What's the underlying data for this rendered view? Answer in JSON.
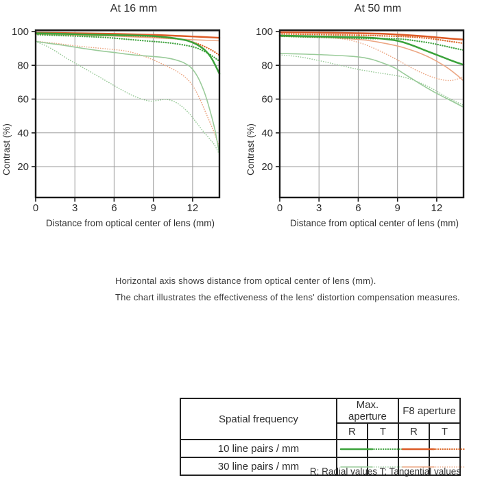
{
  "annotation": {
    "line1": "Horizontal axis shows distance from optical center of lens (mm).",
    "line2": "The chart illustrates the effectiveness of the lens' distortion compensation measures."
  },
  "legend": {
    "header_col": "Spatial frequency",
    "group1": "Max. aperture",
    "group2": "F8 aperture",
    "sub_r": "R",
    "sub_t": "T",
    "rows": [
      {
        "label": "10 line pairs / mm",
        "samples": [
          "max-r-10",
          "max-t-10",
          "f8-r-10",
          "f8-t-10"
        ]
      },
      {
        "label": "30 line pairs / mm",
        "samples": [
          "max-r-30",
          "max-t-30",
          "f8-r-30",
          "f8-t-30"
        ]
      }
    ],
    "footnote": "R: Radial values  T: Tangential values"
  },
  "styles": {
    "max-r-10": {
      "color": "#3aa23a",
      "width": 2.5,
      "dotted": false
    },
    "max-t-10": {
      "color": "#44a544",
      "width": 2.3,
      "dotted": true
    },
    "f8-r-10": {
      "color": "#dc5a26",
      "width": 2.5,
      "dotted": false
    },
    "f8-t-10": {
      "color": "#dd6a2c",
      "width": 2.3,
      "dotted": true
    },
    "max-r-30": {
      "color": "#9acb9a",
      "width": 1.6,
      "dotted": false
    },
    "max-t-30": {
      "color": "#9acb9a",
      "width": 1.6,
      "dotted": true
    },
    "f8-r-30": {
      "color": "#eca784",
      "width": 1.6,
      "dotted": false
    },
    "f8-t-30": {
      "color": "#eca784",
      "width": 1.6,
      "dotted": true
    }
  },
  "chart_data": {
    "type": "line",
    "xlabel": "Distance from optical center of lens (mm)",
    "ylabel": "Contrast (%)",
    "x_ticks": [
      0,
      3,
      6,
      9,
      12
    ],
    "y_ticks": [
      20,
      40,
      60,
      80,
      100
    ],
    "xlim": [
      0,
      14.05
    ],
    "ylim": [
      0,
      100
    ],
    "grid": true,
    "legend_position": "bottom-table",
    "charts": [
      {
        "title": "At 16 mm",
        "series": [
          {
            "name": "30 lp/mm F8 Tangential",
            "style": "f8-t-30",
            "points": [
              [
                0,
                94.3
              ],
              [
                1.5,
                93
              ],
              [
                3,
                91.6
              ],
              [
                4.5,
                90.4
              ],
              [
                6,
                89.3
              ],
              [
                7,
                88.3
              ],
              [
                8,
                86.2
              ],
              [
                9,
                83.2
              ],
              [
                10,
                79.6
              ],
              [
                10.8,
                76.4
              ],
              [
                11.5,
                72.5
              ],
              [
                12,
                68
              ],
              [
                12.5,
                61
              ],
              [
                13,
                52
              ],
              [
                13.5,
                43
              ],
              [
                13.8,
                37
              ],
              [
                14.05,
                31
              ]
            ]
          },
          {
            "name": "30 lp/mm F8 Radial",
            "style": "f8-r-30",
            "points": [
              [
                0,
                98.4
              ],
              [
                3,
                97.9
              ],
              [
                6,
                97.3
              ],
              [
                9,
                96.3
              ],
              [
                11,
                95.5
              ],
              [
                12.5,
                95
              ],
              [
                14.05,
                94.5
              ]
            ]
          },
          {
            "name": "30 lp/mm Max Tangential",
            "style": "max-t-30",
            "points": [
              [
                0,
                94
              ],
              [
                0.8,
                91.5
              ],
              [
                1.6,
                88
              ],
              [
                2.4,
                84
              ],
              [
                3.2,
                80.5
              ],
              [
                4,
                77
              ],
              [
                5,
                72.5
              ],
              [
                6,
                68
              ],
              [
                6.8,
                64.5
              ],
              [
                7.5,
                61.8
              ],
              [
                8.2,
                59.8
              ],
              [
                8.8,
                58.8
              ],
              [
                9.4,
                59.3
              ],
              [
                10,
                59.8
              ],
              [
                10.6,
                58.5
              ],
              [
                11.2,
                55.5
              ],
              [
                11.8,
                51
              ],
              [
                12.3,
                46
              ],
              [
                12.8,
                41
              ],
              [
                13.3,
                36.5
              ],
              [
                13.7,
                32.5
              ],
              [
                14.05,
                27
              ]
            ]
          },
          {
            "name": "30 lp/mm Max Radial",
            "style": "max-r-30",
            "points": [
              [
                0,
                94.2
              ],
              [
                1,
                93
              ],
              [
                2,
                92
              ],
              [
                3,
                90.8
              ],
              [
                4,
                89.6
              ],
              [
                5,
                88.5
              ],
              [
                6,
                87.6
              ],
              [
                7,
                86.6
              ],
              [
                8,
                85.8
              ],
              [
                9,
                85.2
              ],
              [
                10,
                84.4
              ],
              [
                10.8,
                83
              ],
              [
                11.4,
                81.2
              ],
              [
                11.9,
                78.5
              ],
              [
                12.4,
                73
              ],
              [
                12.9,
                64
              ],
              [
                13.3,
                54
              ],
              [
                13.7,
                42
              ],
              [
                14.05,
                27.5
              ]
            ]
          },
          {
            "name": "10 lp/mm F8 Tangential",
            "style": "f8-t-10",
            "points": [
              [
                0,
                99
              ],
              [
                3,
                98.4
              ],
              [
                5,
                98
              ],
              [
                7,
                97.5
              ],
              [
                9,
                96.9
              ],
              [
                10.5,
                96
              ],
              [
                11.5,
                94.8
              ],
              [
                12.3,
                93
              ],
              [
                13,
                90.8
              ],
              [
                13.6,
                88.3
              ],
              [
                14.05,
                86
              ]
            ]
          },
          {
            "name": "10 lp/mm F8 Radial",
            "style": "f8-r-10",
            "points": [
              [
                0,
                99.3
              ],
              [
                3,
                99
              ],
              [
                6,
                98.6
              ],
              [
                9,
                98
              ],
              [
                11,
                97.4
              ],
              [
                12.5,
                96.9
              ],
              [
                14.05,
                96.3
              ]
            ]
          },
          {
            "name": "10 lp/mm Max Tangential",
            "style": "max-t-10",
            "points": [
              [
                0,
                98.2
              ],
              [
                2,
                97.6
              ],
              [
                4,
                97
              ],
              [
                5.5,
                96.4
              ],
              [
                7,
                95.4
              ],
              [
                8.5,
                94.4
              ],
              [
                9.5,
                93.8
              ],
              [
                10.5,
                93
              ],
              [
                11.5,
                91.8
              ],
              [
                12.3,
                90.3
              ],
              [
                13,
                87.8
              ],
              [
                13.5,
                85.5
              ],
              [
                14.05,
                82.5
              ]
            ]
          },
          {
            "name": "10 lp/mm Max Radial",
            "style": "max-r-10",
            "points": [
              [
                0,
                99
              ],
              [
                2,
                98.6
              ],
              [
                4,
                98.2
              ],
              [
                6,
                97.9
              ],
              [
                8,
                97.6
              ],
              [
                9,
                97.3
              ],
              [
                10,
                96.6
              ],
              [
                10.8,
                95.8
              ],
              [
                11.5,
                94.8
              ],
              [
                12,
                93.5
              ],
              [
                12.5,
                91.5
              ],
              [
                13,
                88.5
              ],
              [
                13.5,
                83.5
              ],
              [
                14.05,
                75
              ]
            ]
          }
        ]
      },
      {
        "title": "At 50 mm",
        "series": [
          {
            "name": "30 lp/mm F8 Tangential",
            "style": "f8-t-30",
            "points": [
              [
                0,
                97.6
              ],
              [
                2,
                97.2
              ],
              [
                3.5,
                96.6
              ],
              [
                5,
                95.4
              ],
              [
                6,
                93.6
              ],
              [
                7,
                90.8
              ],
              [
                8,
                87.2
              ],
              [
                8.8,
                84
              ],
              [
                9.5,
                81
              ],
              [
                10.2,
                78
              ],
              [
                10.9,
                75.4
              ],
              [
                11.6,
                73.2
              ],
              [
                12.2,
                71.8
              ],
              [
                12.8,
                71
              ],
              [
                13.4,
                71.4
              ],
              [
                14.05,
                73.4
              ]
            ]
          },
          {
            "name": "30 lp/mm F8 Radial",
            "style": "f8-r-30",
            "points": [
              [
                0,
                97.2
              ],
              [
                3,
                96.6
              ],
              [
                5,
                95.9
              ],
              [
                6.5,
                95
              ],
              [
                7.5,
                93.8
              ],
              [
                8.8,
                91.8
              ],
              [
                9.5,
                90.4
              ],
              [
                10.5,
                87.8
              ],
              [
                11.3,
                85.2
              ],
              [
                12,
                82.4
              ],
              [
                12.8,
                78.6
              ],
              [
                13.5,
                74.5
              ],
              [
                14.05,
                70.8
              ]
            ]
          },
          {
            "name": "30 lp/mm Max Tangential",
            "style": "max-t-30",
            "points": [
              [
                0,
                86.2
              ],
              [
                1.5,
                85
              ],
              [
                3,
                82.8
              ],
              [
                4.5,
                80.2
              ],
              [
                6,
                77.6
              ],
              [
                7.5,
                75.6
              ],
              [
                9,
                73.8
              ],
              [
                10,
                71.8
              ],
              [
                10.8,
                69.4
              ],
              [
                11.6,
                66.4
              ],
              [
                12.4,
                62.8
              ],
              [
                13.2,
                59.4
              ],
              [
                14.05,
                56.4
              ]
            ]
          },
          {
            "name": "30 lp/mm Max Radial",
            "style": "max-r-30",
            "points": [
              [
                0,
                87
              ],
              [
                2,
                86.6
              ],
              [
                4,
                86
              ],
              [
                6,
                85
              ],
              [
                7,
                83.6
              ],
              [
                8,
                81
              ],
              [
                8.8,
                78.4
              ],
              [
                9.5,
                75
              ],
              [
                10.2,
                71.6
              ],
              [
                11,
                67.8
              ],
              [
                11.8,
                64.2
              ],
              [
                12.5,
                61.4
              ],
              [
                13.2,
                58.6
              ],
              [
                14.05,
                55.2
              ]
            ]
          },
          {
            "name": "10 lp/mm F8 Tangential",
            "style": "f8-t-10",
            "points": [
              [
                0,
                98.6
              ],
              [
                3,
                98.2
              ],
              [
                6,
                97.8
              ],
              [
                8,
                97.4
              ],
              [
                10,
                96.8
              ],
              [
                11.5,
                95.8
              ],
              [
                13,
                94.2
              ],
              [
                14.05,
                93
              ]
            ]
          },
          {
            "name": "10 lp/mm F8 Radial",
            "style": "f8-r-10",
            "points": [
              [
                0,
                99.6
              ],
              [
                3,
                99.4
              ],
              [
                6,
                99
              ],
              [
                8,
                98.6
              ],
              [
                9.5,
                98
              ],
              [
                11,
                97.2
              ],
              [
                12.5,
                96.2
              ],
              [
                14.05,
                95.2
              ]
            ]
          },
          {
            "name": "10 lp/mm Max Tangential",
            "style": "max-t-10",
            "points": [
              [
                0,
                97.2
              ],
              [
                3,
                96.6
              ],
              [
                5,
                96.2
              ],
              [
                7,
                95.8
              ],
              [
                8.5,
                95.8
              ],
              [
                9.5,
                95.4
              ],
              [
                10.5,
                94.4
              ],
              [
                11.5,
                93.2
              ],
              [
                12.5,
                91.6
              ],
              [
                13.3,
                90.2
              ],
              [
                14.05,
                89
              ]
            ]
          },
          {
            "name": "10 lp/mm Max Radial",
            "style": "max-r-10",
            "points": [
              [
                0,
                97.6
              ],
              [
                3,
                97.1
              ],
              [
                6,
                96.6
              ],
              [
                7.5,
                96
              ],
              [
                9,
                94.5
              ],
              [
                10,
                92.2
              ],
              [
                11,
                89.2
              ],
              [
                12,
                86.2
              ],
              [
                13,
                83.2
              ],
              [
                13.6,
                81.5
              ],
              [
                14.05,
                80.3
              ]
            ]
          }
        ]
      }
    ]
  }
}
